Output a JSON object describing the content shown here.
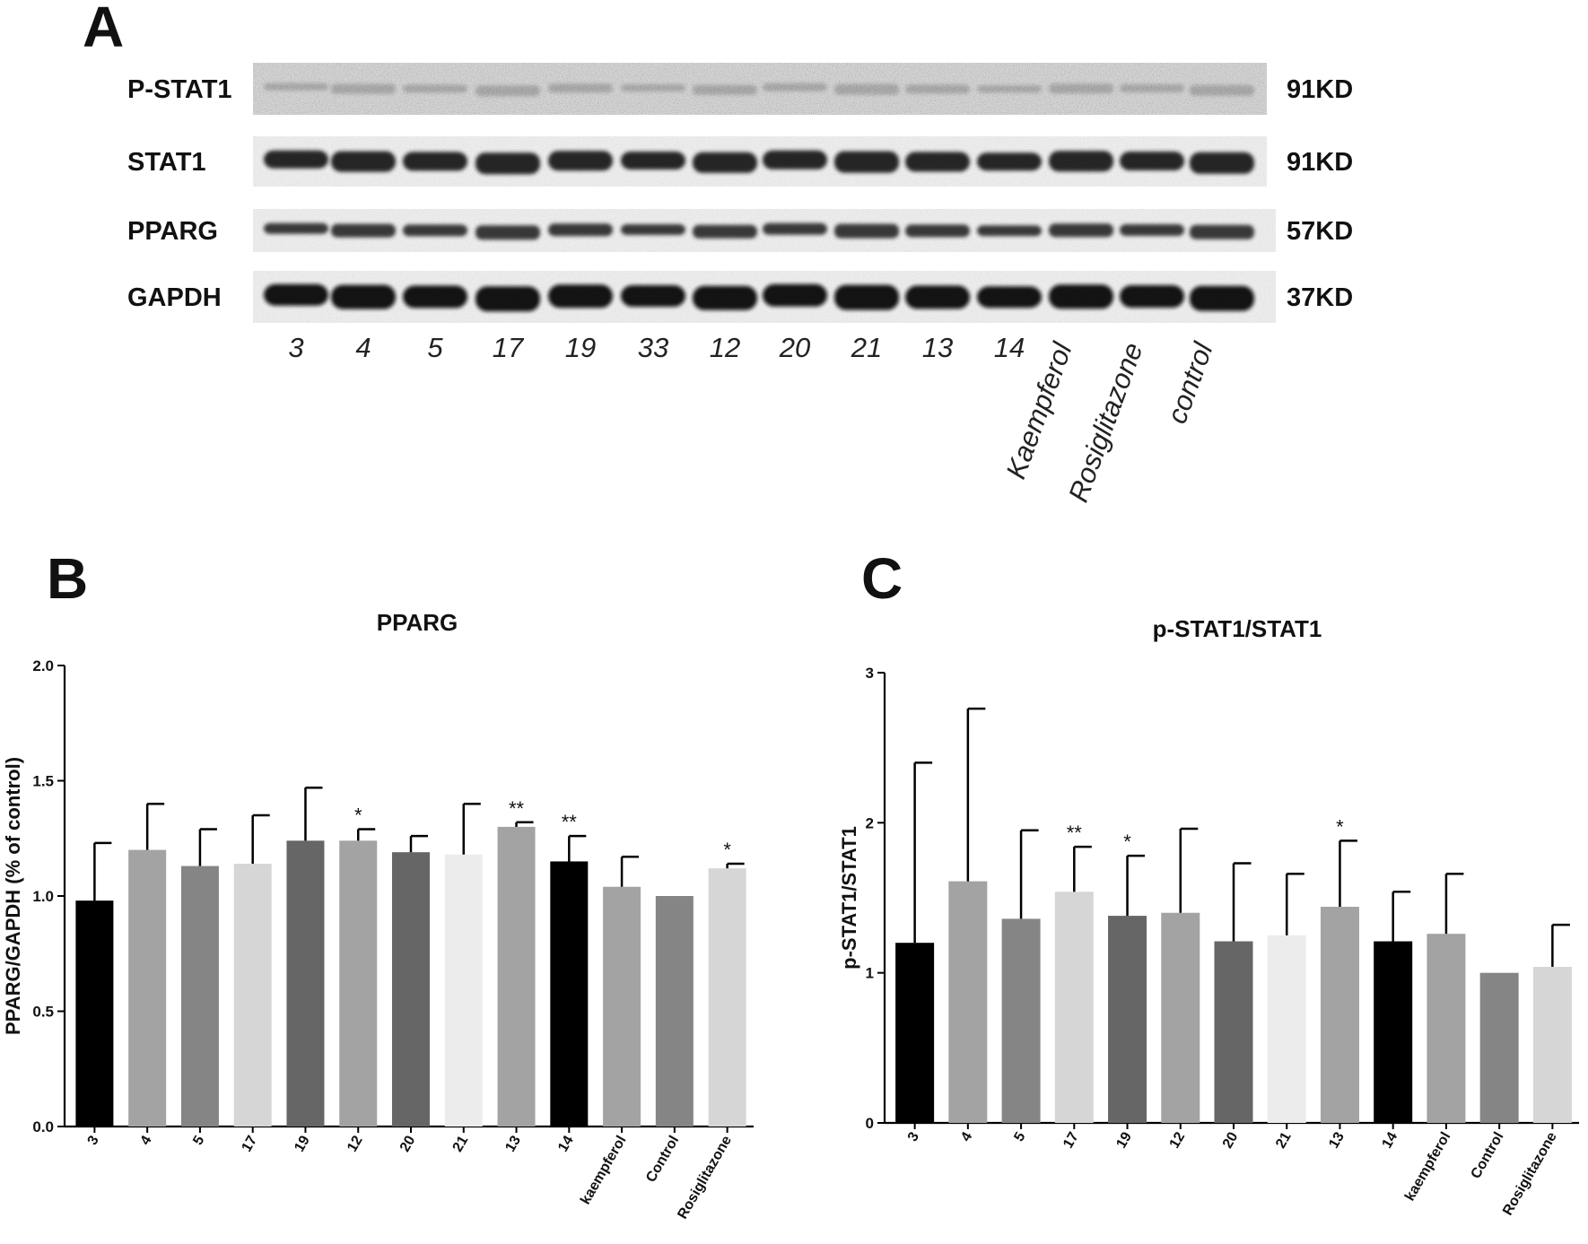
{
  "panels": {
    "A": {
      "letter": "A",
      "rows": [
        {
          "name": "P-STAT1",
          "kd": "91KD"
        },
        {
          "name": "STAT1",
          "kd": "91KD"
        },
        {
          "name": "PPARG",
          "kd": "57KD"
        },
        {
          "name": "GAPDH",
          "kd": "37KD"
        }
      ],
      "lanes": [
        "3",
        "4",
        "5",
        "17",
        "19",
        "33",
        "12",
        "20",
        "21",
        "13",
        "14",
        "Kaempferol",
        "Rosiglitazone",
        "control"
      ]
    },
    "B": {
      "letter": "B"
    },
    "C": {
      "letter": "C"
    }
  },
  "chart_data": [
    {
      "type": "bar",
      "title": "PPARG",
      "ylabel": "PPARG/GAPDH  (% of control)",
      "ylim": [
        0,
        2.0
      ],
      "yticks": [
        "0.0",
        "0.5",
        "1.0",
        "1.5",
        "2.0"
      ],
      "categories": [
        "3",
        "4",
        "5",
        "17",
        "19",
        "12",
        "20",
        "21",
        "13",
        "14",
        "kaempferol",
        "Control",
        "Rosiglitazone"
      ],
      "values": [
        0.98,
        1.2,
        1.13,
        1.14,
        1.24,
        1.24,
        1.19,
        1.18,
        1.3,
        1.15,
        1.04,
        1.0,
        1.12
      ],
      "errors": [
        0.25,
        0.2,
        0.16,
        0.21,
        0.23,
        0.05,
        0.07,
        0.22,
        0.02,
        0.11,
        0.13,
        0.0,
        0.02
      ],
      "significance": [
        "",
        "",
        "",
        "",
        "",
        "*",
        "",
        "",
        "**",
        "**",
        "",
        "",
        "*"
      ],
      "colors": [
        "#000000",
        "#a3a3a3",
        "#858585",
        "#d6d6d6",
        "#666666",
        "#a3a3a3",
        "#666666",
        "#ececec",
        "#a3a3a3",
        "#000000",
        "#a3a3a3",
        "#858585",
        "#d6d6d6"
      ]
    },
    {
      "type": "bar",
      "title": "p-STAT1/STAT1",
      "ylabel": "p-STAT1/STAT1",
      "ylim": [
        0,
        3
      ],
      "yticks": [
        "0",
        "1",
        "2",
        "3"
      ],
      "categories": [
        "3",
        "4",
        "5",
        "17",
        "19",
        "12",
        "20",
        "21",
        "13",
        "14",
        "kaempferol",
        "Control",
        "Rosiglitazone"
      ],
      "values": [
        1.2,
        1.61,
        1.36,
        1.54,
        1.38,
        1.4,
        1.21,
        1.25,
        1.44,
        1.21,
        1.26,
        1.0,
        1.04
      ],
      "errors": [
        1.2,
        1.15,
        0.59,
        0.3,
        0.4,
        0.56,
        0.52,
        0.41,
        0.44,
        0.33,
        0.4,
        0.0,
        0.28
      ],
      "significance": [
        "",
        "",
        "",
        "**",
        "*",
        "",
        "",
        "",
        "*",
        "",
        "",
        "",
        ""
      ],
      "colors": [
        "#000000",
        "#a3a3a3",
        "#858585",
        "#d6d6d6",
        "#666666",
        "#a3a3a3",
        "#666666",
        "#ececec",
        "#a3a3a3",
        "#000000",
        "#a3a3a3",
        "#858585",
        "#d6d6d6"
      ]
    }
  ]
}
